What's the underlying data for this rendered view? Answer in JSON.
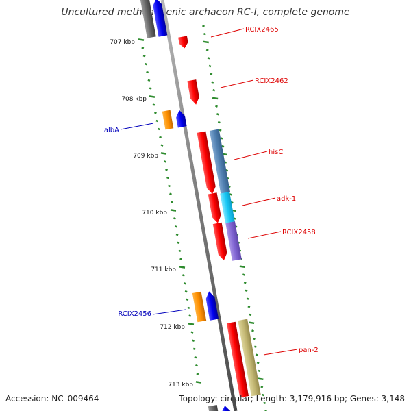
{
  "title": "Uncultured methanogenic archaeon RC-I, complete genome",
  "accession": "Accession: NC_009464",
  "topology": "Topology: circular; Length: 3,179,916 bp; Genes: 3,148",
  "colors": {
    "backbone": "#8a8a8a",
    "tick": "#2e8b2e",
    "forward_label": "#dd0000",
    "reverse_label": "#0000bb"
  },
  "kbp_ticks": [
    "707 kbp",
    "708 kbp",
    "709 kbp",
    "710 kbp",
    "711 kbp",
    "712 kbp",
    "713 kbp"
  ],
  "genes": [
    {
      "name": "RCIX2465",
      "strand": "forward"
    },
    {
      "name": "RCIX2462",
      "strand": "forward"
    },
    {
      "name": "albA",
      "strand": "reverse"
    },
    {
      "name": "hisC",
      "strand": "forward"
    },
    {
      "name": "adk-1",
      "strand": "forward"
    },
    {
      "name": "RCIX2458",
      "strand": "forward"
    },
    {
      "name": "RCIX2456",
      "strand": "reverse"
    },
    {
      "name": "pan-2",
      "strand": "forward"
    }
  ]
}
